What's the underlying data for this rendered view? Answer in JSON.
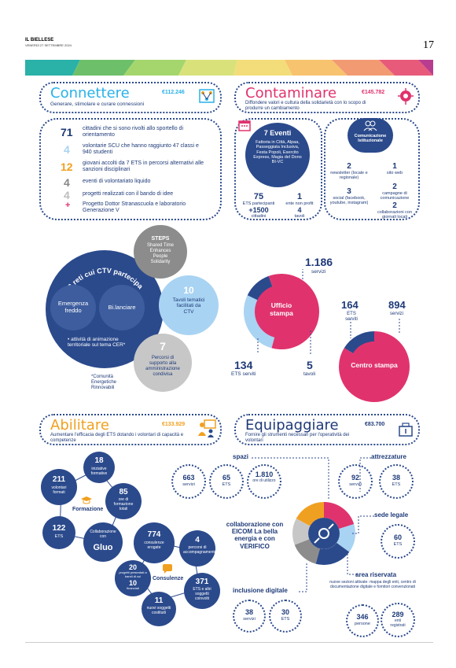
{
  "header": {
    "paper": "IL BIELLESE",
    "date": "VENERDÌ 27 SETTEMBRE 2024",
    "page": "17"
  },
  "colors": {
    "navy": "#1e3a78",
    "blue": "#2b4a8c",
    "lightblue": "#a9d3f2",
    "pink": "#e0336e",
    "orange": "#f0a020",
    "grey": "#8c8c8c",
    "teal": "#2ab1a8"
  },
  "connettere": {
    "title": "Connettere",
    "subtitle": "Generare, stimolare e curare connessioni",
    "amount": "€112.246",
    "icon": "network-icon",
    "items": [
      {
        "num": "71",
        "text": "cittadini che si sono rivolti allo sportello di orientamento"
      },
      {
        "num": "4",
        "text": "volontarie SCU che hanno raggiunto 47 classi e 940 studenti"
      },
      {
        "num": "12",
        "text": "giovani accolti da 7 ETS in percorsi alternativi alle sanzioni disciplinari"
      },
      {
        "num": "4",
        "text": "eventi di volontariato liquido"
      },
      {
        "num": "4",
        "text": "progetti realizzati con il bando di idee"
      },
      {
        "num": "+",
        "text": "Progetto Dottor Stranascuola e laboratorio Generazione V"
      }
    ],
    "reti": {
      "title": "2 reti cui CTV partecipa",
      "left": "Emergenza freddo",
      "right": "Bi.lanciare",
      "bullet": "• attività di animazione territoriale sul tema CER*",
      "footnote": "*Comunità Energetiche Rinnovabili"
    },
    "steps": {
      "title": "STEPS",
      "text": "Shared Time Enhances People Solidarity"
    },
    "tavoli": {
      "num": "10",
      "text": "Tavoli tematici facilitati da CTV"
    },
    "percorsi": {
      "num": "7",
      "text": "Percorsi di supporto alla amministrazione condivisa"
    }
  },
  "contaminare": {
    "title": "Contaminare",
    "subtitle": "Diffondere valori e cultura della solidarietà con lo scopo di produrre un cambiamento",
    "amount": "€145.782",
    "icon": "megaphone-icon",
    "eventi": {
      "title": "7 Eventi",
      "list": "Fattoria in Città, Alpaa, Passeggiata Inclusiva, Festa Popoli, Esercito Express, Magia del Dono BI-VC",
      "stats": [
        {
          "num": "75",
          "label": "ETS partecipanti"
        },
        {
          "num": "1",
          "label": "ente non profit"
        },
        {
          "num": "+1500",
          "label": "cittadini"
        },
        {
          "num": "4",
          "label": "tavoli"
        }
      ]
    },
    "comunicazione": {
      "title": "Comunicazione Istituzionale",
      "stats": [
        {
          "num": "2",
          "label": "newsletter (locale e regionale)"
        },
        {
          "num": "1",
          "label": "sito web"
        },
        {
          "num": "2",
          "label": "campagne di comunicazione"
        },
        {
          "num": "3",
          "label": "social (facebook, youtube, instagram)"
        },
        {
          "num": "2",
          "label": "collaborazioni con giornali locali"
        }
      ]
    },
    "ufficio": {
      "label": "Ufficio stampa",
      "servizi_num": "1.186",
      "servizi_label": "servizi",
      "ets_num": "134",
      "ets_label": "ETS serviti",
      "tavoli_num": "5",
      "tavoli_label": "tavoli"
    },
    "centro": {
      "label": "Centro stampa",
      "ets_num": "164",
      "ets_label": "ETS serviti",
      "servizi_num": "894",
      "servizi_label": "servizi"
    }
  },
  "abilitare": {
    "title": "Abilitare",
    "subtitle": "Aumentare l'efficacia degli ETS dotando i volontari di capacità e competenze",
    "amount": "€133.929",
    "icon": "training-icon",
    "formazione": {
      "label": "Formazione",
      "items": [
        {
          "num": "18",
          "text": "iniziative formative"
        },
        {
          "num": "211",
          "text": "volontari formati"
        },
        {
          "num": "85",
          "text": "ore di formazione totali"
        },
        {
          "num": "122",
          "text": "ETS"
        },
        {
          "num": "Gluo",
          "text": "Collaborazione con"
        }
      ]
    },
    "consulenze": {
      "label": "Consulenze",
      "items": [
        {
          "num": "774",
          "text": "consulenze erogate"
        },
        {
          "num": "4",
          "text": "percorsi di accompagnamento"
        },
        {
          "num": "20",
          "text": "progetti presentati a bandi di cui"
        },
        {
          "num": "10",
          "text": "finanziati"
        },
        {
          "num": "371",
          "text": "ETS e altri soggetti coinvolti"
        },
        {
          "num": "11",
          "text": "nuovi soggetti costituiti"
        }
      ]
    }
  },
  "equipaggiare": {
    "title": "Equipaggiare",
    "subtitle": "Fornire gli strumenti necessari per l'operatività dei volontari",
    "amount": "€83.700",
    "icon": "tools-icon",
    "spazi": {
      "label": "spazi",
      "items": [
        {
          "num": "663",
          "text": "servizi"
        },
        {
          "num": "65",
          "text": "ETS"
        },
        {
          "num": "1.810",
          "text": "ore di utilizzo"
        }
      ]
    },
    "attrezzature": {
      "label": "attrezzature",
      "items": [
        {
          "num": "92",
          "text": "servizi"
        },
        {
          "num": "38",
          "text": "ETS"
        }
      ]
    },
    "sede": {
      "label": "sede legale",
      "items": [
        {
          "num": "60",
          "text": "ETS"
        }
      ]
    },
    "collaborazione": "collaborazione con EICOM La bella energia e con VERIFICO",
    "inclusione": {
      "label": "inclusione digitale",
      "items": [
        {
          "num": "38",
          "text": "servizi"
        },
        {
          "num": "30",
          "text": "ETS"
        }
      ]
    },
    "area": {
      "label": "area riservata",
      "desc": "nuove sezioni attivate: mappa degli enti, centro di documentazione digitale e fornitori convenzionati",
      "items": [
        {
          "num": "346",
          "text": "persone"
        },
        {
          "num": "289",
          "text": "enti registrati"
        }
      ]
    }
  }
}
